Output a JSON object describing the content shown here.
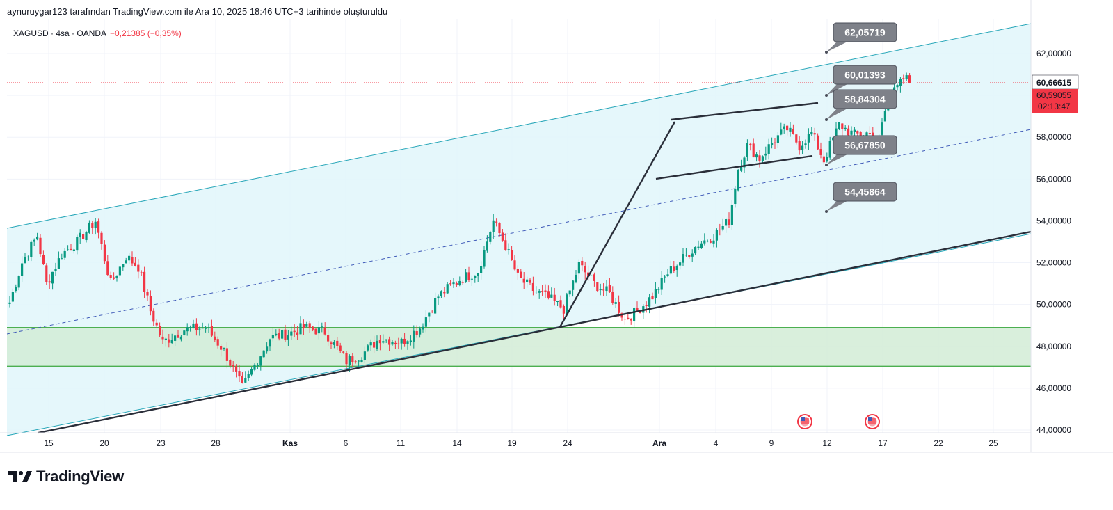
{
  "header": {
    "note": "aynuruygar123 tarafından TradingView.com ile Ara 10, 2025 18:46 UTC+3 tarihinde oluşturuldu",
    "symbol": "XAGUSD · 4sa · OANDA",
    "change": "−0,21385 (−0,35%)"
  },
  "colors": {
    "up": "#089981",
    "down": "#f23645",
    "channel_fill": "#e0f6fa",
    "channel_line": "#26a6b8",
    "midline": "#3f5ab8",
    "zone_fill": "#d2ecd6",
    "zone_line": "#4caf50",
    "trendline": "#2a2e39",
    "callout": "#7e8189"
  },
  "chart_data": {
    "type": "candlestick",
    "instrument": "XAGUSD",
    "interval": "4sa",
    "source": "OANDA",
    "ylim": [
      44,
      63.3
    ],
    "y_ticks": [
      "44,00000",
      "46,00000",
      "48,00000",
      "50,00000",
      "52,00000",
      "54,00000",
      "56,00000",
      "58,00000",
      "60,00000",
      "62,00000"
    ],
    "y_tick_values": [
      44,
      46,
      48,
      50,
      52,
      54,
      56,
      58,
      60,
      62
    ],
    "x_ticks": [
      {
        "label": "15",
        "bold": false
      },
      {
        "label": "20",
        "bold": false
      },
      {
        "label": "23",
        "bold": false
      },
      {
        "label": "28",
        "bold": false
      },
      {
        "label": "Kas",
        "bold": true
      },
      {
        "label": "6",
        "bold": false
      },
      {
        "label": "11",
        "bold": false
      },
      {
        "label": "14",
        "bold": false
      },
      {
        "label": "19",
        "bold": false
      },
      {
        "label": "24",
        "bold": false
      },
      {
        "label": "Ara",
        "bold": true
      },
      {
        "label": "4",
        "bold": false
      },
      {
        "label": "9",
        "bold": false
      },
      {
        "label": "12",
        "bold": false
      },
      {
        "label": "17",
        "bold": false
      },
      {
        "label": "22",
        "bold": false
      },
      {
        "label": "25",
        "bold": false
      }
    ],
    "price_close": 60.59055,
    "price_labels": {
      "last": "60,66615",
      "current": "60,59055",
      "countdown": "02:13:47"
    },
    "callouts": [
      {
        "label": "62,05719",
        "value": 62.05719
      },
      {
        "label": "60,01393",
        "value": 60.01393
      },
      {
        "label": "58,84304",
        "value": 58.84304
      },
      {
        "label": "56,67850",
        "value": 56.6785
      },
      {
        "label": "54,45864",
        "value": 54.45864
      }
    ],
    "support_zone": [
      47.05,
      48.9
    ],
    "path": [
      {
        "t": 0,
        "v": 50.1
      },
      {
        "t": 4,
        "v": 52.0
      },
      {
        "t": 9,
        "v": 53.3
      },
      {
        "t": 12,
        "v": 51.0
      },
      {
        "t": 17,
        "v": 52.4
      },
      {
        "t": 22,
        "v": 53.0
      },
      {
        "t": 28,
        "v": 54.0
      },
      {
        "t": 33,
        "v": 51.0
      },
      {
        "t": 38,
        "v": 52.3
      },
      {
        "t": 42,
        "v": 51.8
      },
      {
        "t": 46,
        "v": 49.7
      },
      {
        "t": 50,
        "v": 48.2
      },
      {
        "t": 57,
        "v": 48.8
      },
      {
        "t": 64,
        "v": 48.9
      },
      {
        "t": 70,
        "v": 47.8
      },
      {
        "t": 76,
        "v": 46.0
      },
      {
        "t": 80,
        "v": 47.1
      },
      {
        "t": 85,
        "v": 48.4
      },
      {
        "t": 91,
        "v": 48.6
      },
      {
        "t": 96,
        "v": 48.9
      },
      {
        "t": 103,
        "v": 48.7
      },
      {
        "t": 110,
        "v": 47.3
      },
      {
        "t": 115,
        "v": 47.6
      },
      {
        "t": 121,
        "v": 48.4
      },
      {
        "t": 128,
        "v": 48.2
      },
      {
        "t": 134,
        "v": 48.9
      },
      {
        "t": 140,
        "v": 50.4
      },
      {
        "t": 147,
        "v": 51.2
      },
      {
        "t": 153,
        "v": 51.6
      },
      {
        "t": 158,
        "v": 54.0
      },
      {
        "t": 162,
        "v": 52.8
      },
      {
        "t": 166,
        "v": 51.3
      },
      {
        "t": 171,
        "v": 50.7
      },
      {
        "t": 176,
        "v": 50.3
      },
      {
        "t": 181,
        "v": 49.8
      },
      {
        "t": 186,
        "v": 51.9
      },
      {
        "t": 191,
        "v": 51.0
      },
      {
        "t": 196,
        "v": 50.5
      },
      {
        "t": 201,
        "v": 49.3
      },
      {
        "t": 205,
        "v": 49.7
      },
      {
        "t": 210,
        "v": 50.4
      },
      {
        "t": 215,
        "v": 51.5
      },
      {
        "t": 220,
        "v": 52.2
      },
      {
        "t": 225,
        "v": 52.9
      },
      {
        "t": 230,
        "v": 53.3
      },
      {
        "t": 235,
        "v": 54.0
      },
      {
        "t": 238,
        "v": 56.5
      },
      {
        "t": 241,
        "v": 57.6
      },
      {
        "t": 245,
        "v": 57.0
      },
      {
        "t": 250,
        "v": 57.9
      },
      {
        "t": 254,
        "v": 58.4
      },
      {
        "t": 258,
        "v": 57.6
      },
      {
        "t": 262,
        "v": 58.2
      },
      {
        "t": 266,
        "v": 56.9
      },
      {
        "t": 271,
        "v": 58.6
      },
      {
        "t": 276,
        "v": 58.1
      },
      {
        "t": 280,
        "v": 58.2
      },
      {
        "t": 284,
        "v": 57.9
      },
      {
        "t": 287,
        "v": 59.9
      },
      {
        "t": 291,
        "v": 61.0
      },
      {
        "t": 294,
        "v": 60.6
      }
    ]
  },
  "brand": {
    "name": "TradingView"
  }
}
